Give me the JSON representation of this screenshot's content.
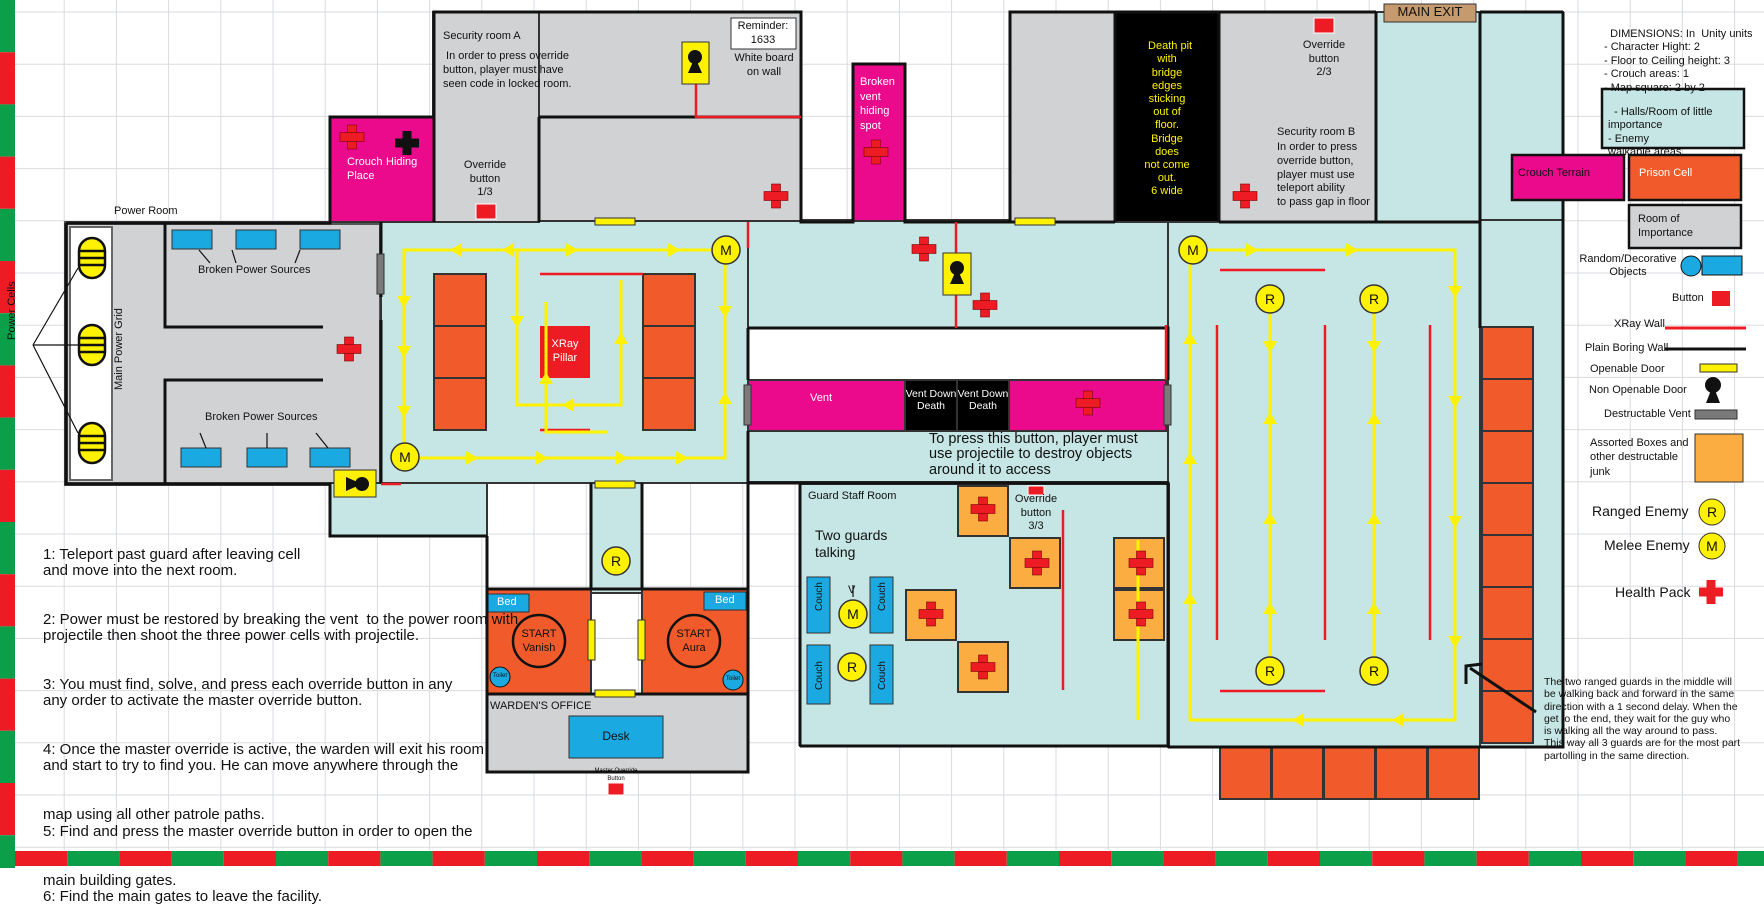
{
  "map": {
    "power_cells_label": "Power Cells",
    "main_power_grid_label": "Main Power Grid",
    "power_room_label": "Power Room",
    "broken_power_sources": "Broken Power Sources",
    "crouch_hiding_place": [
      "Crouch",
      "Place"
    ],
    "crouch_hiding_word": "Hiding",
    "security_a": {
      "title": "Security room A",
      "text": " In order to press override\nbutton, player must have\nseen code in locked room."
    },
    "reminder": {
      "title": "Reminder:",
      "code": "1633"
    },
    "white_board": [
      "White board",
      "on wall"
    ],
    "override_1": [
      "Override",
      "button",
      "1/3"
    ],
    "override_2": [
      "Override",
      "button",
      "2/3"
    ],
    "override_3": [
      "Override",
      "button",
      "3/3"
    ],
    "broken_vent": [
      "Broken",
      "vent",
      "hiding",
      "spot"
    ],
    "death_pit": [
      "Death pit",
      "with",
      "bridge",
      "edges",
      "sticking",
      "out of",
      "floor.",
      "Bridge",
      "does",
      "not come",
      "out.",
      "6 wide"
    ],
    "security_b": {
      "title": "Security room B",
      "text": "In order to press\noverride button,\nplayer must use\nteleport ability\nto pass gap in floor"
    },
    "main_exit": "MAIN EXIT",
    "xray_pillar": [
      "XRay",
      "Pillar"
    ],
    "vent": "Vent",
    "vent_down_death": [
      "Vent Down",
      "Death"
    ],
    "projectile_note": "To press this button, player must\nuse projectile to destroy objects\naround it to access",
    "guard_staff_room": "Guard Staff Room",
    "two_guards": [
      "Two guards",
      "talking"
    ],
    "couch": "Couch",
    "bed": "Bed",
    "toilet": "Toilet",
    "start_left": [
      "START",
      "Vanish"
    ],
    "start_right": [
      "START",
      "Aura"
    ],
    "wardens_office": "WARDEN'S OFFICE",
    "desk": "Desk",
    "master_override": [
      "Master Override",
      "Button"
    ],
    "melee_letter": "M",
    "ranged_letter": "R",
    "v_label": "V",
    "guards_note": "The two ranged guards in the middle will\nbe walking back and forward in the same\ndirection with a 1 second delay. When the\nget to the end, they wait for the guy who\nis walking all the way around to pass.\nThis way all 3 guards are for the most part\npartolling in the same direction.",
    "instructions": [
      "1: Teleport past guard after leaving cell",
      "and move into the next room.",
      "2: Power must be restored by breaking the vent  to the power room with",
      "projectile then shoot the three power cells with projectile.",
      "3: You must find, solve, and press each override button in any",
      "any order to activate the master override button.",
      "4: Once the master override is active, the warden will exit his room",
      "and start to try to find you. He can move anywhere through the",
      "map using all other patrole paths.",
      "5: Find and press the master override button in order to open the",
      "main building gates.",
      "6: Find the main gates to leave the facility."
    ]
  },
  "legend": {
    "dimensions": [
      "DIMENSIONS: In  Unity units",
      "- Character Hight: 2",
      "- Floor to Ceiling height: 3",
      "- Crouch areas: 1",
      "- Map square: 2 by 2"
    ],
    "halls": [
      "- Halls/Room of little",
      "importance",
      "- Enemy",
      "walkable areas"
    ],
    "crouch_terrain": "Crouch Terrain",
    "prison_cell": "Prison Cell",
    "room_of_importance": [
      "Room of",
      "Importance"
    ],
    "random_objects": [
      "Random/Decorative",
      "Objects"
    ],
    "button": "Button",
    "xray_wall": "XRay Wall",
    "plain_wall": "Plain Boring Wall",
    "openable_door": "Openable Door",
    "non_openable_door": "Non Openable Door",
    "destructable_vent": "Destructable Vent",
    "boxes": [
      "Assorted Boxes and",
      "other destructable",
      "junk"
    ],
    "ranged_enemy": "Ranged Enemy",
    "melee_enemy": "Melee Enemy",
    "health_pack": "Health Pack"
  },
  "colors": {
    "hall": "#c6e6e5",
    "room": "#d1d2d4",
    "cell": "#f15a2b",
    "crouch": "#ec0a8c",
    "box": "#fbad41",
    "object": "#1ba9e1",
    "enemy": "#fff200",
    "path": "#fff200",
    "health": "#ed1c24",
    "grid": "#d9dbe0",
    "border_green": "#0a9f48",
    "border_red": "#ed1c24",
    "exit": "#c59a6e"
  },
  "icons": [
    "health-cross-icon",
    "black-cross-icon",
    "lock-icon",
    "arrow-icon"
  ]
}
